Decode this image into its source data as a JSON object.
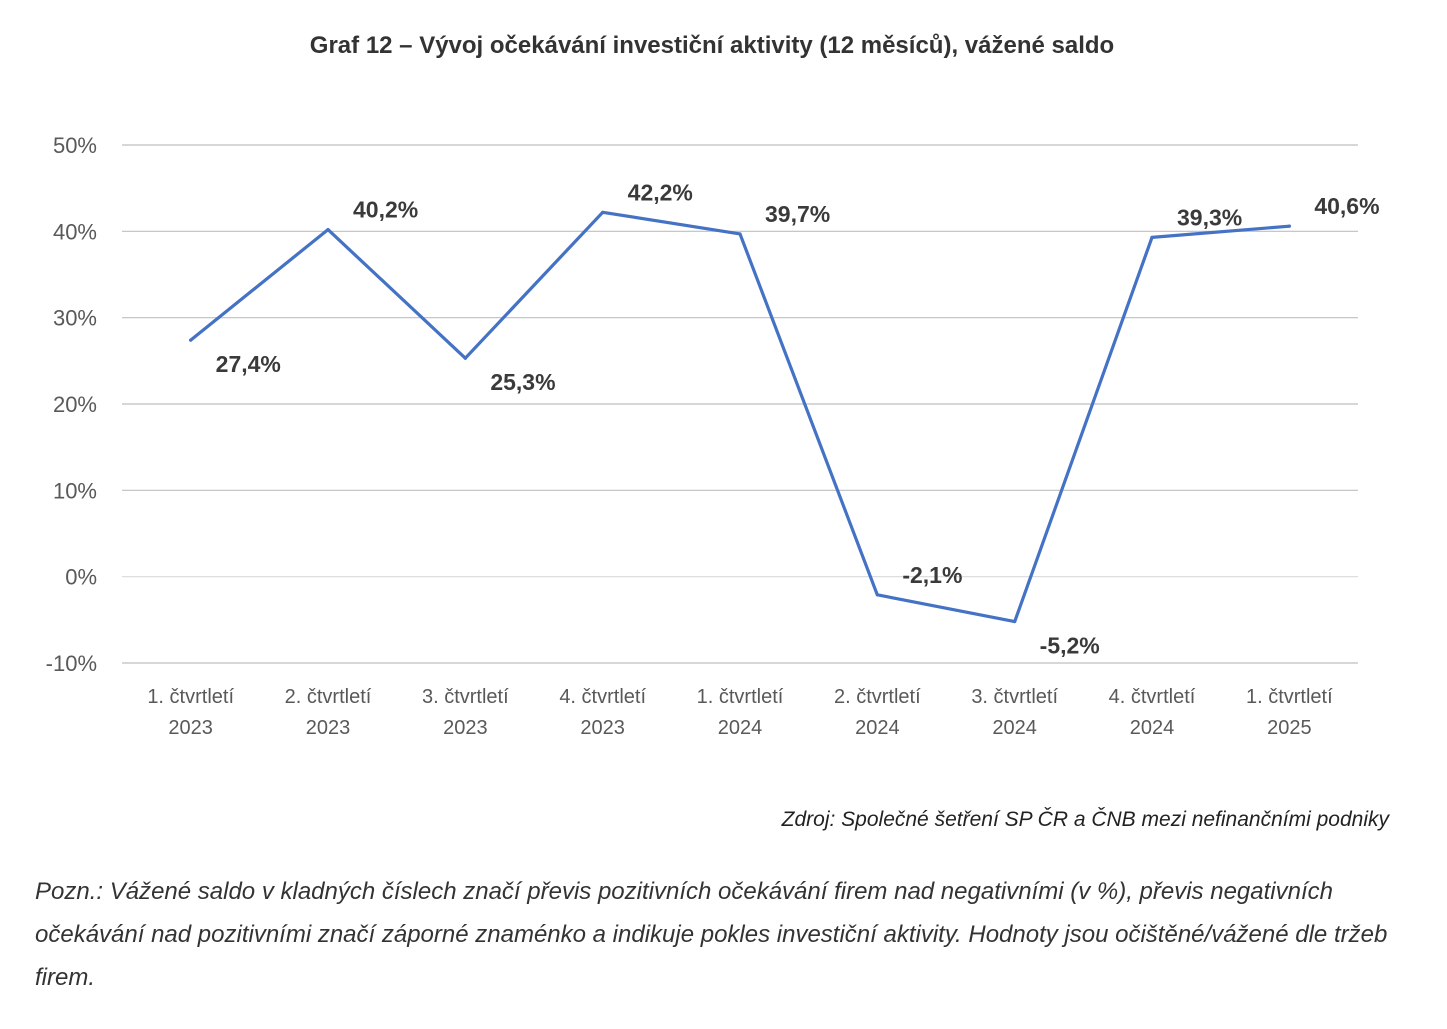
{
  "chart_data": {
    "type": "line",
    "title": "Graf 12 – Vývoj očekávání investiční aktivity (12 měsíců), vážené saldo",
    "categories": [
      [
        "1. čtvrtletí",
        "2023"
      ],
      [
        "2. čtvrtletí",
        "2023"
      ],
      [
        "3. čtvrtletí",
        "2023"
      ],
      [
        "4. čtvrtletí",
        "2023"
      ],
      [
        "1. čtvrtletí",
        "2024"
      ],
      [
        "2. čtvrtletí",
        "2024"
      ],
      [
        "3. čtvrtletí",
        "2024"
      ],
      [
        "4. čtvrtletí",
        "2024"
      ],
      [
        "1. čtvrtletí",
        "2025"
      ]
    ],
    "series": [
      {
        "values": [
          27.4,
          40.2,
          25.3,
          42.2,
          39.7,
          -2.1,
          -5.2,
          39.3,
          40.6
        ],
        "labels": [
          "27,4%",
          "40,2%",
          "25,3%",
          "42,2%",
          "39,7%",
          "-2,1%",
          "-5,2%",
          "39,3%",
          "40,6%"
        ]
      }
    ],
    "ylim": [
      -10,
      50
    ],
    "yticks": [
      -10,
      0,
      10,
      20,
      30,
      40,
      50
    ],
    "ytick_labels": [
      "-10%",
      "0%",
      "10%",
      "20%",
      "30%",
      "40%",
      "50%"
    ],
    "grid": true,
    "legend": "none",
    "colors": {
      "line": "#4472C4",
      "grid": "#bfbfbf",
      "zero_line": "#d9d9d9"
    }
  },
  "source": "Zdroj: Společné šetření SP ČR a ČNB mezi nefinančními podniky",
  "note": "Pozn.: Vážené saldo v kladných číslech značí převis pozitivních očekávání firem nad negativními (v %), převis negativních očekávání nad pozitivními značí záporné znaménko a indikuje pokles investiční aktivity. Hodnoty jsou očištěné/vážené dle tržeb firem."
}
